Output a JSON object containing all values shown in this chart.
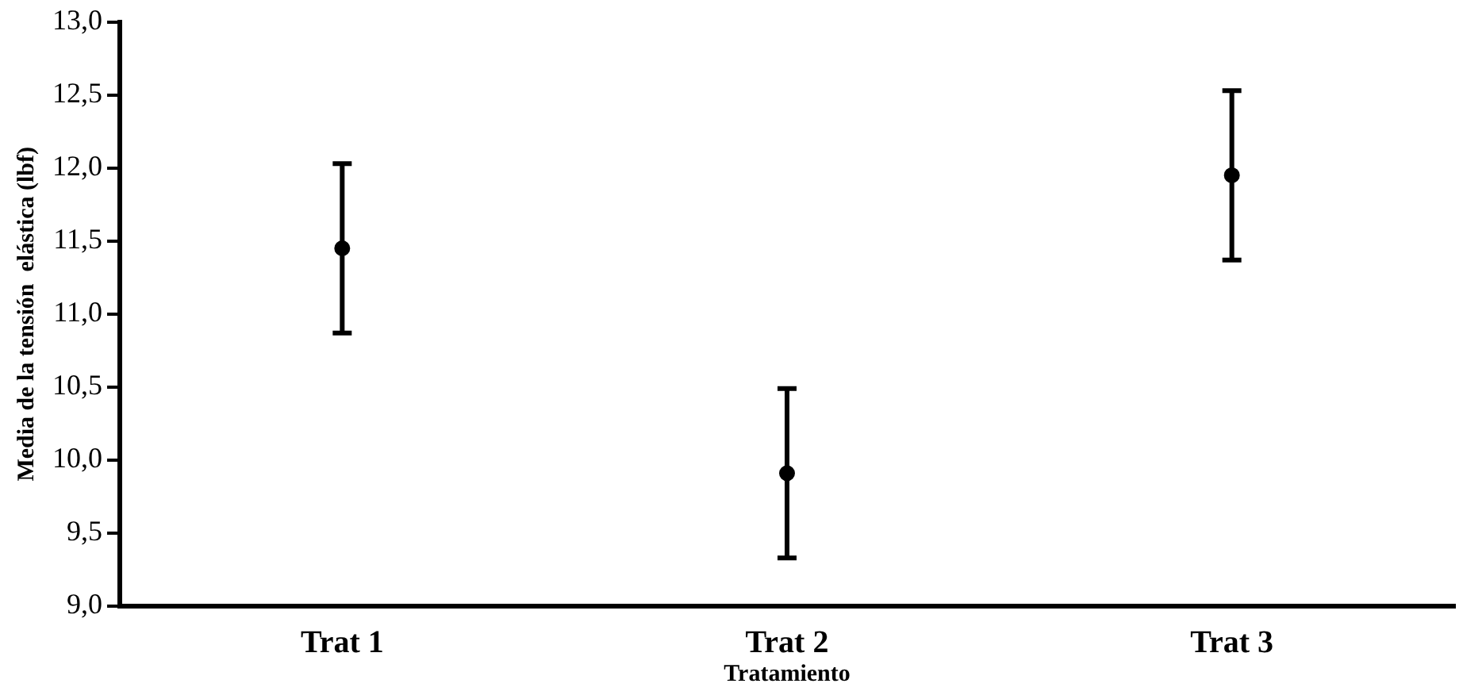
{
  "chart_data": {
    "type": "scatter",
    "xlabel": "Tratamiento",
    "ylabel": "Media de la tensión  elástica (lbf)",
    "categories": [
      "Trat 1",
      "Trat 2",
      "Trat 3"
    ],
    "values": [
      11.45,
      9.91,
      11.95
    ],
    "errors": [
      0.58,
      0.58,
      0.58
    ],
    "color": "#000000",
    "marker": "circle",
    "grid": false,
    "legend": false,
    "ylim": [
      9,
      13
    ],
    "yticks": [
      {
        "value": 9,
        "label": "9,0"
      },
      {
        "value": 9.5,
        "label": "9,5"
      },
      {
        "value": 10,
        "label": "10,0"
      },
      {
        "value": 10.5,
        "label": "10,5"
      },
      {
        "value": 11,
        "label": "11,0"
      },
      {
        "value": 11.5,
        "label": "11,5"
      },
      {
        "value": 12,
        "label": "12,0"
      },
      {
        "value": 12.5,
        "label": "12,5"
      },
      {
        "value": 13,
        "label": "13,0"
      }
    ]
  }
}
